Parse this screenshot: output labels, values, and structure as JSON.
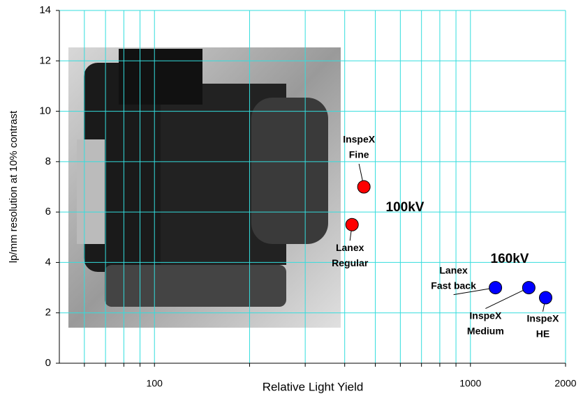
{
  "chart_data": {
    "type": "scatter",
    "x_label": "Relative Light Yield",
    "y_label": "lp/mm resolution at 10% contrast",
    "xlim": [
      50,
      2000
    ],
    "ylim": [
      0,
      14
    ],
    "xscale": "log",
    "xticks": [
      100,
      1000,
      2000
    ],
    "minor_xgrid": [
      60,
      70,
      80,
      90,
      200,
      300,
      400,
      500,
      600,
      700,
      800,
      900
    ],
    "yticks": [
      0,
      2,
      4,
      6,
      8,
      10,
      12,
      14
    ],
    "grid": true,
    "grid_color": "#33dddd",
    "series": [
      {
        "name": "100kV",
        "color": "#ff0000",
        "x": [
          460,
          422
        ],
        "values": [
          7,
          5.5
        ],
        "labels": [
          [
            "InspeX",
            "Fine"
          ],
          [
            "Lanex",
            "Regular"
          ]
        ]
      },
      {
        "name": "160kV",
        "color": "#0000ff",
        "x": [
          1200,
          1530,
          1730
        ],
        "values": [
          3,
          3,
          2.6
        ],
        "labels": [
          [
            "Lanex",
            "Fast back"
          ],
          [
            "InspeX",
            "Medium"
          ],
          [
            "InspeX",
            "HE"
          ]
        ]
      }
    ]
  }
}
